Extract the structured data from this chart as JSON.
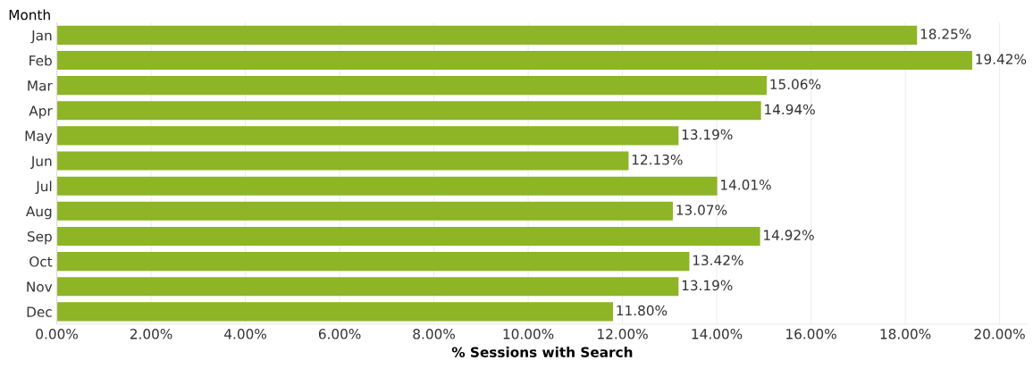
{
  "chart_data": {
    "type": "bar",
    "orientation": "horizontal",
    "ylabel": "Month",
    "xlabel": "% Sessions with Search",
    "categories": [
      "Jan",
      "Feb",
      "Mar",
      "Apr",
      "May",
      "Jun",
      "Jul",
      "Aug",
      "Sep",
      "Oct",
      "Nov",
      "Dec"
    ],
    "values": [
      18.25,
      19.42,
      15.06,
      14.94,
      13.19,
      12.13,
      14.01,
      13.07,
      14.92,
      13.42,
      13.19,
      11.8
    ],
    "value_labels": [
      "18.25%",
      "19.42%",
      "15.06%",
      "14.94%",
      "13.19%",
      "12.13%",
      "14.01%",
      "13.07%",
      "14.92%",
      "13.42%",
      "13.19%",
      "11.80%"
    ],
    "color": "#8db526",
    "xlim": [
      0,
      20.6
    ],
    "xticks": [
      {
        "value": 0,
        "label": "0.00%"
      },
      {
        "value": 2,
        "label": "2.00%"
      },
      {
        "value": 4,
        "label": "4.00%"
      },
      {
        "value": 6,
        "label": "6.00%"
      },
      {
        "value": 8,
        "label": "8.00%"
      },
      {
        "value": 10,
        "label": "10.00%"
      },
      {
        "value": 12,
        "label": "12.00%"
      },
      {
        "value": 14,
        "label": "14.00%"
      },
      {
        "value": 16,
        "label": "16.00%"
      },
      {
        "value": 18,
        "label": "18.00%"
      },
      {
        "value": 20,
        "label": "20.00%"
      }
    ],
    "grid": "x",
    "legend": false
  }
}
